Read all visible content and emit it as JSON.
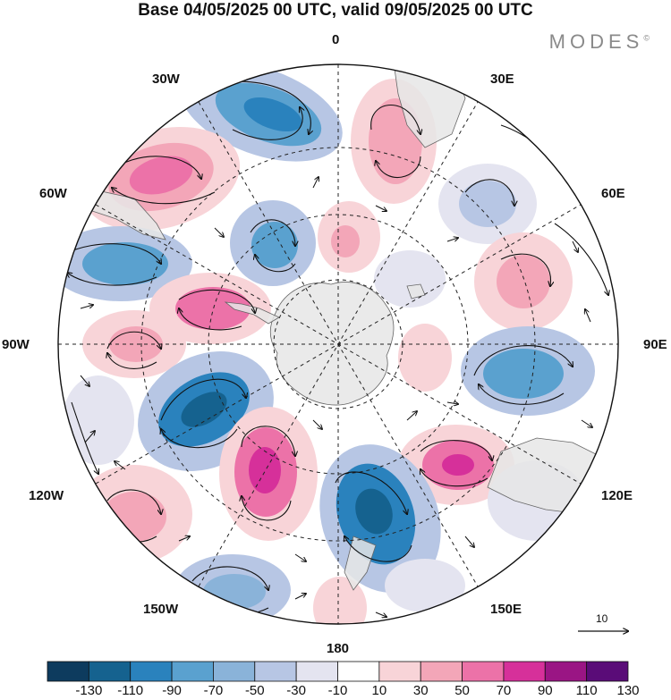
{
  "title": "Base 04/05/2025 00 UTC, valid 09/05/2025 00 UTC",
  "brand": {
    "name": "MODES",
    "mark": "©"
  },
  "longitude_labels": {
    "lon_0": "0",
    "lon_30e": "30E",
    "lon_60e": "60E",
    "lon_90e": "90E",
    "lon_120e": "120E",
    "lon_150e": "150E",
    "lon_180": "180",
    "lon_150w": "150W",
    "lon_120w": "120W",
    "lon_90w": "90W",
    "lon_60w": "60W",
    "lon_30w": "30W"
  },
  "vector_reference": {
    "label": "10"
  },
  "colorbar": {
    "tick_labels": [
      "-130",
      "-110",
      "-90",
      "-70",
      "-50",
      "-30",
      "-10",
      "10",
      "30",
      "50",
      "70",
      "90",
      "110",
      "130"
    ],
    "colors": [
      "#0d3b5e",
      "#15628f",
      "#2a82bd",
      "#5aa1cf",
      "#8ab3d9",
      "#b7c6e4",
      "#e4e4f0",
      "#ffffff",
      "#f8d4d8",
      "#f3a6b8",
      "#ec72a8",
      "#d6309a",
      "#9a1584",
      "#5a0c78"
    ]
  },
  "colors": {
    "land": "#e6e6e6",
    "coast": "#666666",
    "contour": "#111111",
    "grid": "#222222"
  }
}
